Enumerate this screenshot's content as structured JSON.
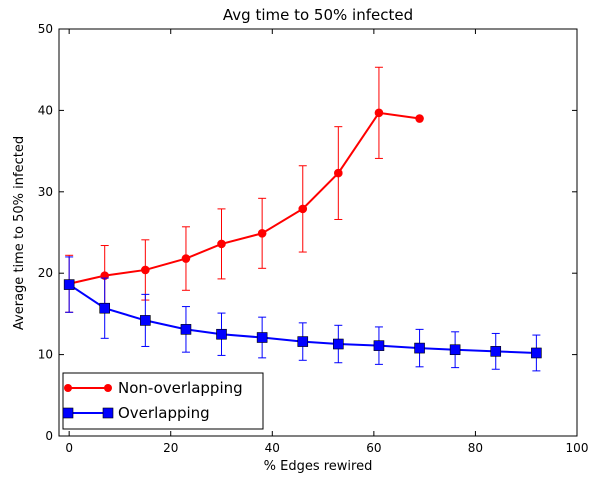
{
  "chart_data": {
    "type": "line",
    "title": "Avg time to 50% infected",
    "xlabel": "% Edges rewired",
    "ylabel": "Average time to 50% infected",
    "xlim": [
      -2,
      100
    ],
    "ylim": [
      0,
      50
    ],
    "xticks": [
      0,
      20,
      40,
      60,
      80,
      100
    ],
    "yticks": [
      0,
      10,
      20,
      30,
      40,
      50
    ],
    "grid": false,
    "legend_position": "bottom-left",
    "series": [
      {
        "name": "Non-overlapping",
        "color": "#ff0000",
        "marker": "circle",
        "points": [
          {
            "x": 0,
            "y": 18.7,
            "err": 3.5
          },
          {
            "x": 7,
            "y": 19.7,
            "err": 3.7
          },
          {
            "x": 15,
            "y": 20.4,
            "err": 3.7
          },
          {
            "x": 23,
            "y": 21.8,
            "err": 3.9
          },
          {
            "x": 30,
            "y": 23.6,
            "err": 4.3
          },
          {
            "x": 38,
            "y": 24.9,
            "err": 4.3
          },
          {
            "x": 46,
            "y": 27.9,
            "err": 5.3
          },
          {
            "x": 53,
            "y": 32.3,
            "err": 5.7
          },
          {
            "x": 61,
            "y": 39.7,
            "err": 5.6
          },
          {
            "x": 69,
            "y": 39.0,
            "err": null
          }
        ]
      },
      {
        "name": "Overlapping",
        "color": "#0000ff",
        "marker": "square",
        "points": [
          {
            "x": 0,
            "y": 18.6,
            "err": 3.4
          },
          {
            "x": 7,
            "y": 15.7,
            "err": 3.7
          },
          {
            "x": 15,
            "y": 14.2,
            "err": 3.2
          },
          {
            "x": 23,
            "y": 13.1,
            "err": 2.8
          },
          {
            "x": 30,
            "y": 12.5,
            "err": 2.6
          },
          {
            "x": 38,
            "y": 12.1,
            "err": 2.5
          },
          {
            "x": 46,
            "y": 11.6,
            "err": 2.3
          },
          {
            "x": 53,
            "y": 11.3,
            "err": 2.3
          },
          {
            "x": 61,
            "y": 11.1,
            "err": 2.3
          },
          {
            "x": 69,
            "y": 10.8,
            "err": 2.3
          },
          {
            "x": 76,
            "y": 10.6,
            "err": 2.2
          },
          {
            "x": 84,
            "y": 10.4,
            "err": 2.2
          },
          {
            "x": 92,
            "y": 10.2,
            "err": 2.2
          }
        ]
      }
    ]
  }
}
